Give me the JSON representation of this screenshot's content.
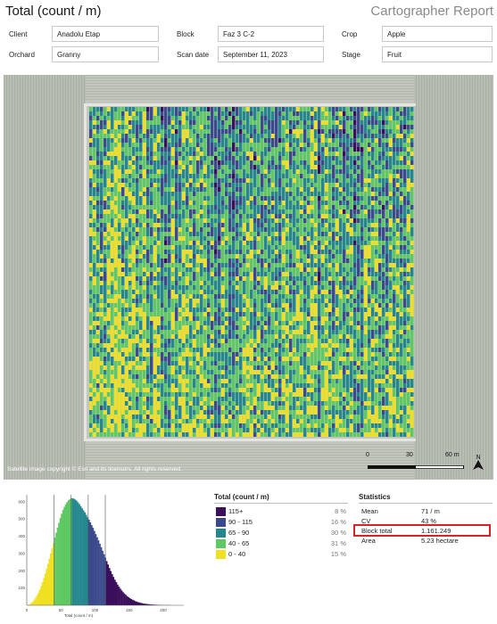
{
  "header": {
    "title": "Total (count / m)",
    "report": "Cartographer Report"
  },
  "info": [
    {
      "label": "Client",
      "value": "Anadolu Etap"
    },
    {
      "label": "Block",
      "value": "Faz 3 C-2"
    },
    {
      "label": "Crop",
      "value": "Apple"
    },
    {
      "label": "Orchard",
      "value": "Granny"
    },
    {
      "label": "Scan date",
      "value": "September 11, 2023"
    },
    {
      "label": "Stage",
      "value": "Fruit"
    }
  ],
  "map": {
    "copyright": "Satellite image copyright © Esri and its licensors. All rights reserved.",
    "scale_labels": [
      "0",
      "30",
      "60 m"
    ],
    "north": "N"
  },
  "legend": {
    "title": "Total (count / m)",
    "items": [
      {
        "label": "115+",
        "percent": "8 %",
        "color": "#3b0f5c"
      },
      {
        "label": "90 - 115",
        "percent": "16 %",
        "color": "#3b4a8c"
      },
      {
        "label": "65 - 90",
        "percent": "30 %",
        "color": "#24878e"
      },
      {
        "label": "40 - 65",
        "percent": "31 %",
        "color": "#5ec962"
      },
      {
        "label": "0 - 40",
        "percent": "15 %",
        "color": "#f0e022"
      }
    ]
  },
  "statistics": {
    "title": "Statistics",
    "rows": [
      {
        "label": "Mean",
        "value": "71 / m"
      },
      {
        "label": "CV",
        "value": "43 %"
      },
      {
        "label": "Block total",
        "value": "1.161.249"
      },
      {
        "label": "Area",
        "value": "5.23 hectare"
      }
    ]
  },
  "chart_data": {
    "type": "bar",
    "xlabel": "Total (count / m)",
    "ylabel": "",
    "x_ticks": [
      0,
      50,
      100,
      150,
      200
    ],
    "y_ticks": [
      100,
      200,
      300,
      400,
      500,
      600
    ],
    "xlim": [
      0,
      230
    ],
    "ylim": [
      0,
      640
    ],
    "thresholds": [
      40,
      65,
      90,
      115
    ],
    "bin_width": 2,
    "bins_start": 0,
    "values": [
      2,
      4,
      8,
      14,
      22,
      32,
      44,
      58,
      74,
      92,
      112,
      134,
      158,
      184,
      212,
      240,
      270,
      300,
      330,
      360,
      392,
      420,
      450,
      478,
      505,
      530,
      552,
      570,
      585,
      598,
      608,
      615,
      620,
      620,
      617,
      612,
      605,
      596,
      586,
      574,
      562,
      550,
      538,
      524,
      510,
      496,
      480,
      464,
      448,
      430,
      412,
      394,
      376,
      356,
      336,
      316,
      296,
      276,
      256,
      236,
      216,
      198,
      180,
      164,
      148,
      134,
      120,
      108,
      96,
      86,
      76,
      68,
      60,
      53,
      47,
      41,
      36,
      32,
      28,
      24,
      21,
      18,
      16,
      14,
      12,
      10,
      9,
      8,
      7,
      6,
      5,
      4,
      4,
      3,
      3,
      2,
      2,
      2,
      1,
      1,
      1,
      1,
      1,
      1,
      1
    ]
  }
}
